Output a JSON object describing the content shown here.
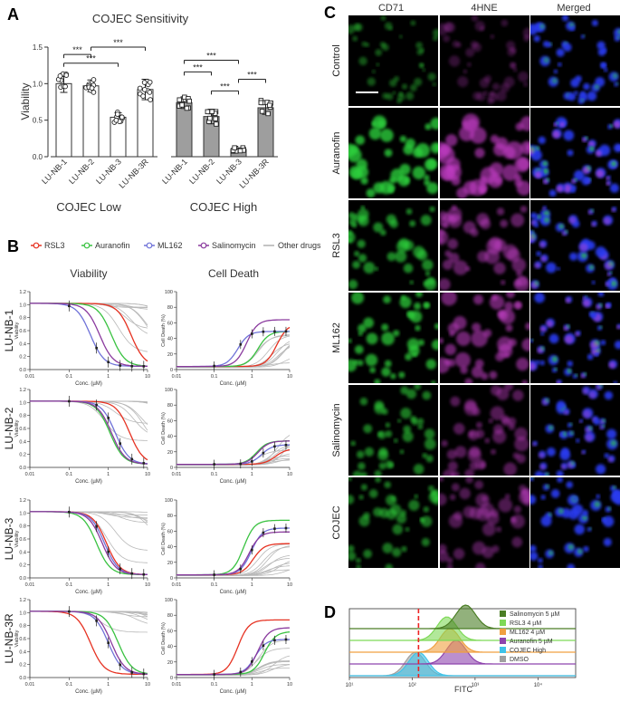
{
  "panels": {
    "a": "A",
    "b": "B",
    "c": "C",
    "d": "D"
  },
  "chart_data": [
    {
      "type": "bar",
      "panel": "A",
      "title": "COJEC Sensitivity",
      "ylabel": "Viability",
      "ylim": [
        0,
        1.5
      ],
      "yticks": [
        "0.0",
        "0.5",
        "1.0",
        "1.5"
      ],
      "groups": [
        {
          "name": "COJEC Low",
          "color": "#ffffff",
          "categories": [
            "LU-NB-1",
            "LU-NB-2",
            "LU-NB-3",
            "LU-NB-3R"
          ],
          "values": [
            1.0,
            0.97,
            0.54,
            0.92
          ],
          "errors": [
            0.12,
            0.08,
            0.06,
            0.14
          ]
        },
        {
          "name": "COJEC High",
          "color": "#9e9e9e",
          "categories": [
            "LU-NB-1",
            "LU-NB-2",
            "LU-NB-3",
            "LU-NB-3R"
          ],
          "values": [
            0.74,
            0.55,
            0.1,
            0.67
          ],
          "errors": [
            0.08,
            0.1,
            0.02,
            0.09
          ]
        }
      ],
      "significance": [
        {
          "label": "***",
          "from": 0,
          "to": 1,
          "level": 1.4
        },
        {
          "label": "***",
          "from": 0,
          "to": 2,
          "level": 1.28
        },
        {
          "label": "***",
          "from": 1,
          "to": 3,
          "level": 1.5
        },
        {
          "label": "***",
          "from": 4,
          "to": 6,
          "level": 1.32
        },
        {
          "label": "***",
          "from": 4,
          "to": 5,
          "level": 1.16
        },
        {
          "label": "***",
          "from": 5,
          "to": 6,
          "level": 0.9
        },
        {
          "label": "***",
          "from": 6,
          "to": 7,
          "level": 1.06
        }
      ]
    },
    {
      "type": "line",
      "panel": "B",
      "legend": [
        "RSL3",
        "Auranofin",
        "ML162",
        "Salinomycin",
        "Other drugs"
      ],
      "colors": {
        "RSL3": "#e63222",
        "Auranofin": "#39c241",
        "ML162": "#6f72d8",
        "Salinomycin": "#8a3a9e",
        "Other drugs": "#b0b0b0"
      },
      "columns": [
        "Viability",
        "Cell Death"
      ],
      "rows": [
        "LU-NB-1",
        "LU-NB-2",
        "LU-NB-3",
        "LU-NB-3R"
      ],
      "x_scale": "log",
      "xlim": [
        0.01,
        10
      ],
      "xticks": [
        "0.01",
        "0.1",
        "1",
        "10"
      ],
      "xlabel": "Conc. (µM)",
      "viability_ylabel": "Viability",
      "viability_ylim": [
        0,
        1.2
      ],
      "viability_yticks": [
        "0.0",
        "0.2",
        "0.4",
        "0.6",
        "0.8",
        "1.0",
        "1.2"
      ],
      "death_ylabel": "Cell Death (%)",
      "death_ylim": [
        0,
        100
      ],
      "death_yticks": [
        "0",
        "20",
        "40",
        "60",
        "80",
        "100"
      ],
      "viability_ic50": {
        "LU-NB-1": {
          "RSL3": 3.8,
          "Auranofin": 1.2,
          "ML162": 0.35,
          "Salinomycin": 0.6
        },
        "LU-NB-2": {
          "RSL3": 3.5,
          "Auranofin": 1.1,
          "ML162": 1.5,
          "Salinomycin": 1.2
        },
        "LU-NB-3": {
          "RSL3": 0.9,
          "Auranofin": 0.5,
          "ML162": 0.8,
          "Salinomycin": 0.7
        },
        "LU-NB-3R": {
          "RSL3": 0.35,
          "Auranofin": 1.8,
          "ML162": 1.0,
          "Salinomycin": 1.2
        }
      },
      "death_max": {
        "LU-NB-1": {
          "RSL3": 55,
          "Auranofin": 45,
          "ML162": 45,
          "Salinomycin": 60
        },
        "LU-NB-2": {
          "RSL3": 20,
          "Auranofin": 30,
          "ML162": 25,
          "Salinomycin": 30
        },
        "LU-NB-3": {
          "RSL3": 40,
          "Auranofin": 70,
          "ML162": 60,
          "Salinomycin": 55
        },
        "LU-NB-3R": {
          "RSL3": 70,
          "Auranofin": 55,
          "ML162": 45,
          "Salinomycin": 60
        }
      }
    },
    {
      "type": "histogram",
      "panel": "D",
      "xlabel": "FITC",
      "x_scale": "log",
      "xticks": [
        "10¹",
        "10²",
        "10³",
        "10⁴"
      ],
      "series": [
        {
          "name": "Salinomycin 5 µM",
          "color": "#4a7d24",
          "peak_log10": 2.85
        },
        {
          "name": "RSL3 4 µM",
          "color": "#7ed957",
          "peak_log10": 2.55
        },
        {
          "name": "ML162 4 µM",
          "color": "#f0a040",
          "peak_log10": 2.6
        },
        {
          "name": "Auranofin 5 µM",
          "color": "#8e44ad",
          "peak_log10": 2.7
        },
        {
          "name": "COJEC High",
          "color": "#3fc3e8",
          "peak_log10": 2.1
        },
        {
          "name": "DMSO",
          "color": "#a0a0a0",
          "peak_log10": 2.05
        }
      ]
    }
  ],
  "microscopy": {
    "columns": [
      "CD71",
      "4HNE",
      "Merged"
    ],
    "rows": [
      "Control",
      "Auranofin",
      "RSL3",
      "ML162",
      "Salinomycin",
      "COJEC"
    ]
  }
}
